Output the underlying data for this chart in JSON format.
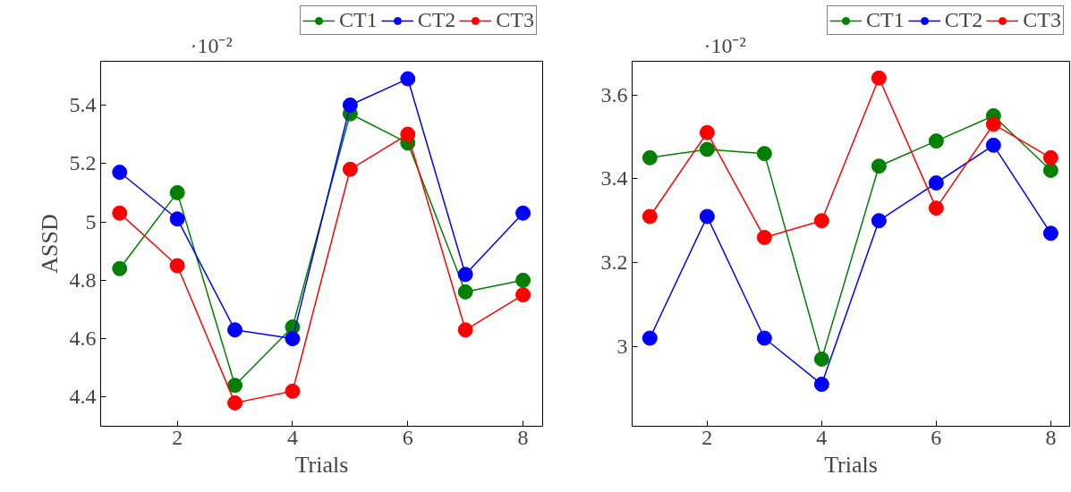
{
  "chart_data": [
    {
      "type": "line",
      "xlabel": "Trials",
      "ylabel": "ASSD",
      "annotations": [
        "·10⁻²"
      ],
      "x": [
        1,
        2,
        3,
        4,
        5,
        6,
        7,
        8
      ],
      "xlim": [
        0.67,
        8.34
      ],
      "ylim": [
        4.3,
        5.55
      ],
      "xticks": [
        2,
        4,
        6,
        8
      ],
      "yticks": [
        4.4,
        4.6,
        4.8,
        {
          "value": 5.0,
          "label": "5"
        },
        5.2,
        5.4
      ],
      "grid": false,
      "legend": "top right",
      "marker": "circle",
      "line_style": "solid",
      "series": [
        {
          "name": "CT1",
          "color": "#008000",
          "values": [
            4.84,
            5.1,
            4.44,
            4.64,
            5.37,
            5.27,
            4.76,
            4.8
          ]
        },
        {
          "name": "CT2",
          "color": "#0000ff",
          "values": [
            5.17,
            5.01,
            4.63,
            4.6,
            5.4,
            5.49,
            4.82,
            5.03
          ]
        },
        {
          "name": "CT3",
          "color": "#ff0000",
          "values": [
            5.03,
            4.85,
            4.38,
            4.42,
            5.18,
            5.3,
            4.63,
            4.75
          ]
        }
      ]
    },
    {
      "type": "line",
      "xlabel": "Trials",
      "annotations": [
        "·10⁻²"
      ],
      "x": [
        1,
        2,
        3,
        4,
        5,
        6,
        7,
        8
      ],
      "xlim": [
        0.69,
        8.33
      ],
      "ylim": [
        2.81,
        3.68
      ],
      "xticks": [
        2,
        4,
        6,
        8
      ],
      "yticks": [
        {
          "value": 3.0,
          "label": "3"
        },
        3.2,
        3.4,
        3.6
      ],
      "grid": false,
      "legend": "top right",
      "marker": "circle",
      "line_style": "solid",
      "series": [
        {
          "name": "CT1",
          "color": "#008000",
          "values": [
            3.45,
            3.47,
            3.46,
            2.97,
            3.43,
            3.49,
            3.55,
            3.42
          ]
        },
        {
          "name": "CT2",
          "color": "#0000ff",
          "values": [
            3.02,
            3.31,
            3.02,
            2.91,
            3.3,
            3.39,
            3.48,
            3.27
          ]
        },
        {
          "name": "CT3",
          "color": "#ff0000",
          "values": [
            3.31,
            3.51,
            3.26,
            3.3,
            3.64,
            3.33,
            3.53,
            3.45
          ]
        }
      ]
    }
  ]
}
